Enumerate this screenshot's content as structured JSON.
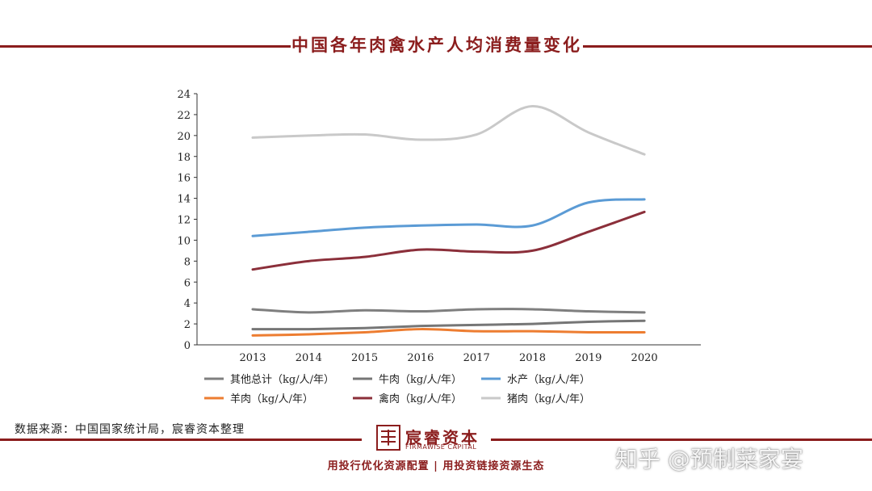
{
  "header": {
    "title": "中国各年肉禽水产人均消费量变化"
  },
  "footer": {
    "source": "数据来源：中国国家统计局，宸睿资本整理",
    "logo_name": "宸睿资本",
    "logo_sub": "FIRMAWISE CAPITAL",
    "slogan": "用投行优化资源配置 | 用投资链接资源生态",
    "watermark": "知乎 @预制菜家宴"
  },
  "chart_data": {
    "type": "line",
    "x": [
      "2013",
      "2014",
      "2015",
      "2016",
      "2017",
      "2018",
      "2019",
      "2020"
    ],
    "ylim": [
      0,
      24
    ],
    "yticks": [
      0,
      2,
      4,
      6,
      8,
      10,
      12,
      14,
      16,
      18,
      20,
      22,
      24
    ],
    "legend_position": "bottom",
    "grid": false,
    "series": [
      {
        "name": "其他总计（kg/人/年）",
        "color": "#7f7f7f",
        "values": [
          3.4,
          3.1,
          3.3,
          3.2,
          3.4,
          3.4,
          3.2,
          3.1
        ]
      },
      {
        "name": "牛肉（kg/人/年）",
        "color": "#767676",
        "values": [
          1.5,
          1.5,
          1.6,
          1.8,
          1.9,
          2.0,
          2.2,
          2.3
        ]
      },
      {
        "name": "水产（kg/人/年）",
        "color": "#5b9bd5",
        "values": [
          10.4,
          10.8,
          11.2,
          11.4,
          11.5,
          11.4,
          13.6,
          13.9
        ]
      },
      {
        "name": "羊肉（kg/人/年）",
        "color": "#ed7d31",
        "values": [
          0.9,
          1.0,
          1.2,
          1.5,
          1.3,
          1.3,
          1.2,
          1.2
        ]
      },
      {
        "name": "禽肉（kg/人/年）",
        "color": "#8b2f3a",
        "values": [
          7.2,
          8.0,
          8.4,
          9.1,
          8.9,
          9.0,
          10.8,
          12.7
        ]
      },
      {
        "name": "猪肉（kg/人/年）",
        "color": "#c9c9c9",
        "values": [
          19.8,
          20.0,
          20.1,
          19.6,
          20.1,
          22.8,
          20.3,
          18.2
        ]
      }
    ]
  }
}
